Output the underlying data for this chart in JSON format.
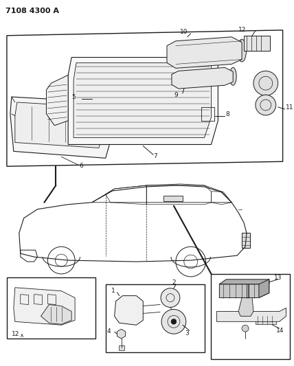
{
  "title_code": "7108 4300 A",
  "bg_color": "#ffffff",
  "line_color": "#1a1a1a",
  "fig_width": 4.28,
  "fig_height": 5.33,
  "dpi": 100
}
